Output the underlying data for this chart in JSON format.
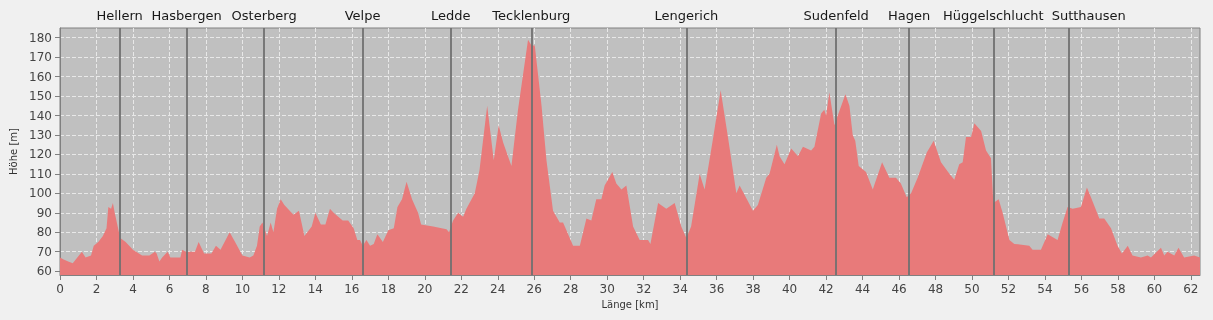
{
  "chart_data": {
    "type": "area",
    "xlabel": "Länge [km]",
    "ylabel": "Höhe [m]",
    "xlim": [
      0,
      62.5
    ],
    "xticks": [
      0,
      2,
      4,
      6,
      8,
      10,
      12,
      14,
      16,
      18,
      20,
      22,
      24,
      26,
      28,
      30,
      32,
      34,
      36,
      38,
      40,
      42,
      44,
      46,
      48,
      50,
      52,
      54,
      56,
      58,
      60,
      62
    ],
    "ylim": [
      58,
      185
    ],
    "yticks": [
      60,
      70,
      80,
      90,
      100,
      110,
      120,
      130,
      140,
      150,
      160,
      170,
      180
    ],
    "grid": true,
    "series": [
      {
        "color": "#e87a7a",
        "x": [
          0,
          0.2,
          0.45,
          0.7,
          1.2,
          1.4,
          1.7,
          1.85,
          2.1,
          2.35,
          2.55,
          2.65,
          2.8,
          2.9,
          3.0,
          3.3,
          3.6,
          4.0,
          4.5,
          4.9,
          5.2,
          5.3,
          5.45,
          5.6,
          5.9,
          6.05,
          6.6,
          6.7,
          6.9,
          7.4,
          7.6,
          7.9,
          8.3,
          8.55,
          8.8,
          9.3,
          9.6,
          10.0,
          10.4,
          10.6,
          10.8,
          10.95,
          11.1,
          11.35,
          11.55,
          11.7,
          11.9,
          12.1,
          12.3,
          12.8,
          13.1,
          13.4,
          13.8,
          14.0,
          14.3,
          14.55,
          14.8,
          15.0,
          15.5,
          15.8,
          16.1,
          16.3,
          16.45,
          16.6,
          16.8,
          17.0,
          17.2,
          17.4,
          17.7,
          18.0,
          18.3,
          18.5,
          18.75,
          19.0,
          19.3,
          19.63,
          19.8,
          20.46,
          21.19,
          21.33,
          21.55,
          21.83,
          22.1,
          22.28,
          22.74,
          23.0,
          23.42,
          23.78,
          24.05,
          24.3,
          24.75,
          25.11,
          25.66,
          25.85,
          26.03,
          26.4,
          26.67,
          27.03,
          27.4,
          27.58,
          28.13,
          28.5,
          28.86,
          29.13,
          29.4,
          29.68,
          29.86,
          30.28,
          30.5,
          30.78,
          31.05,
          31.42,
          31.78,
          32.24,
          32.37,
          32.79,
          33.24,
          33.7,
          34.06,
          34.34,
          34.6,
          35.07,
          35.34,
          35.8,
          36.22,
          36.62,
          37.08,
          37.26,
          37.99,
          38.26,
          38.72,
          38.9,
          39.3,
          39.45,
          39.72,
          40.09,
          40.46,
          40.73,
          41.18,
          41.36,
          41.73,
          41.9,
          42.0,
          42.18,
          42.46,
          42.64,
          43.06,
          43.28,
          43.46,
          43.6,
          43.79,
          44.19,
          44.56,
          45.07,
          45.47,
          45.83,
          46.1,
          46.42,
          46.66,
          47.02,
          47.52,
          47.9,
          48.3,
          48.76,
          49.03,
          49.3,
          49.49,
          49.67,
          49.95,
          50.13,
          50.5,
          50.77,
          51.04,
          51.17,
          51.46,
          51.68,
          52.05,
          52.32,
          53.14,
          53.32,
          53.78,
          54.15,
          54.69,
          54.97,
          55.24,
          55.52,
          55.97,
          56.3,
          56.52,
          56.98,
          57.25,
          57.62,
          57.98,
          58.22,
          58.54,
          58.8,
          59.26,
          59.63,
          59.81,
          60.36,
          60.54,
          60.72,
          61.09,
          61.32,
          61.63,
          62.18,
          62.5
        ],
        "values": [
          67,
          66,
          65,
          64,
          70,
          67,
          68,
          73,
          75,
          78,
          82,
          93,
          92,
          95,
          90,
          77,
          75,
          71,
          68,
          68,
          70,
          69,
          65,
          67,
          70,
          67,
          67,
          71,
          70,
          70,
          75,
          69,
          69,
          73,
          71,
          80,
          75,
          68,
          67,
          68,
          73,
          83,
          85,
          78,
          85,
          80,
          92,
          97,
          94,
          89,
          91,
          78,
          83,
          90,
          84,
          84,
          92,
          90,
          86,
          86,
          82,
          76,
          76,
          73,
          76,
          73,
          74,
          79,
          75,
          81,
          82,
          93,
          97,
          106,
          97,
          90,
          84,
          83,
          81.5,
          80,
          86,
          90,
          88,
          92,
          100,
          112,
          145,
          117,
          135,
          126,
          114,
          143,
          179,
          176,
          176,
          145,
          117,
          91,
          85,
          85,
          73,
          73,
          87,
          86,
          97,
          97,
          104,
          111,
          105,
          102,
          104,
          83,
          76,
          76,
          74,
          95,
          92,
          95,
          83,
          77,
          83,
          110,
          102,
          128,
          153,
          129,
          100,
          104,
          91,
          94,
          108,
          110,
          125,
          119,
          115,
          123,
          119,
          124,
          122,
          124,
          141,
          143,
          140,
          152,
          135,
          140,
          151,
          145,
          130,
          127,
          114,
          111,
          102,
          116,
          108,
          108,
          105,
          98,
          100,
          108,
          121,
          127,
          116,
          110,
          107,
          115,
          116,
          129,
          129,
          136,
          132,
          122,
          118,
          95,
          97,
          90,
          76,
          74,
          73,
          71,
          71,
          79,
          76,
          85,
          93,
          92,
          93,
          103,
          98,
          87,
          87,
          82,
          73,
          69,
          73,
          68,
          67,
          68,
          67,
          72,
          68,
          70,
          68,
          72,
          67,
          68,
          67
        ]
      }
    ],
    "ref_lines": [
      {
        "axis": "x",
        "value": 3.27,
        "label": "Hellern",
        "color": "#707070"
      },
      {
        "axis": "x",
        "value": 6.94,
        "label": "Hasbergen",
        "color": "#707070"
      },
      {
        "axis": "x",
        "value": 11.19,
        "label": "Osterberg",
        "color": "#707070"
      },
      {
        "axis": "x",
        "value": 16.59,
        "label": "Velpe",
        "color": "#707070"
      },
      {
        "axis": "x",
        "value": 21.42,
        "label": "Ledde",
        "color": "#707070"
      },
      {
        "axis": "x",
        "value": 25.84,
        "label": "Tecklenburg",
        "color": "#707070"
      },
      {
        "axis": "x",
        "value": 34.34,
        "label": "Lengerich",
        "color": "#707070"
      },
      {
        "axis": "x",
        "value": 42.55,
        "label": "Sudenfeld",
        "color": "#707070"
      },
      {
        "axis": "x",
        "value": 46.55,
        "label": "Hagen",
        "color": "#707070"
      },
      {
        "axis": "x",
        "value": 51.17,
        "label": "Hüggelschlucht",
        "color": "#707070"
      },
      {
        "axis": "x",
        "value": 55.28,
        "label": "Sutthausen",
        "color": "#707070"
      }
    ]
  }
}
